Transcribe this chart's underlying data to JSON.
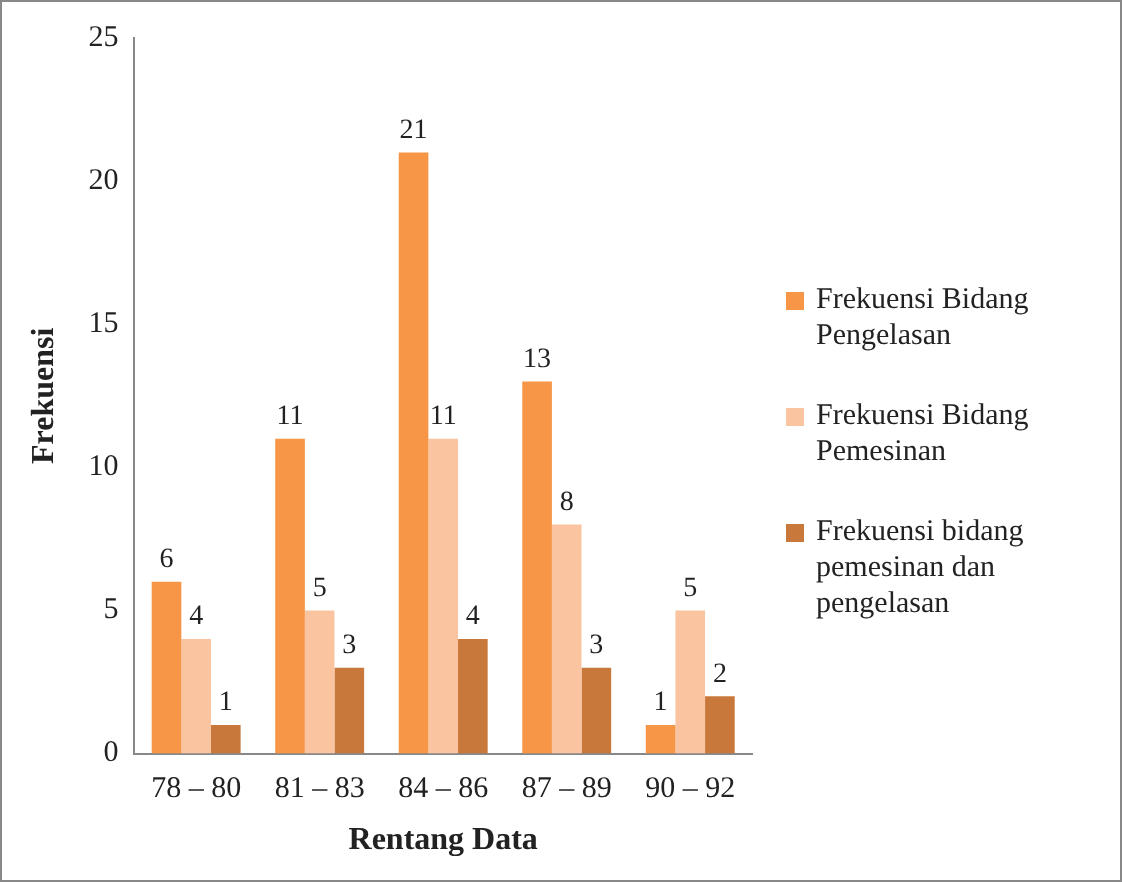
{
  "chart_data": {
    "type": "bar",
    "xlabel": "Rentang Data",
    "ylabel": "Frekuensi",
    "categories": [
      "78 – 80",
      "81 – 83",
      "84 – 86",
      "87 – 89",
      "90 – 92"
    ],
    "series": [
      {
        "name": "Frekuensi Bidang Pengelasan",
        "color": "#f79646",
        "values": [
          6,
          11,
          21,
          13,
          1
        ]
      },
      {
        "name": "Frekuensi Bidang Pemesinan",
        "color": "#fac4a0",
        "values": [
          4,
          5,
          11,
          8,
          5
        ]
      },
      {
        "name": "Frekuensi bidang pemesinan dan pengelasan",
        "color": "#c8783a",
        "values": [
          1,
          3,
          4,
          3,
          2
        ]
      }
    ],
    "ylim": [
      0,
      25
    ],
    "yticks": [
      0,
      5,
      10,
      15,
      20,
      25
    ],
    "grid": false,
    "legend": "right",
    "data_labels": true
  }
}
